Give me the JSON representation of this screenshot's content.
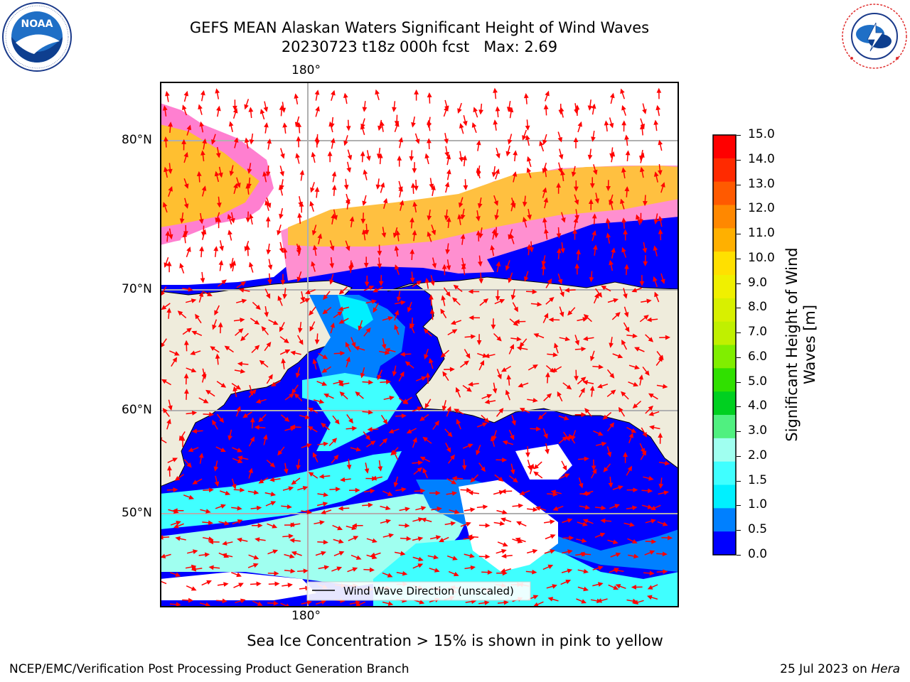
{
  "header": {
    "title_line1": "GEFS MEAN Alaskan Waters Significant Height of Wind Waves",
    "title_line2": "20230723 t18z 000h fcst   Max: 2.69"
  },
  "logos": {
    "noaa": {
      "icon": "noaa-logo",
      "wordmark": "NOAA",
      "ring_text": "NATIONAL OCEANIC AND ATMOSPHERIC ADMINISTRATION · U.S. DEPARTMENT OF COMMERCE"
    },
    "nws": {
      "icon": "nws-logo",
      "ring_text": "NATIONAL WEATHER SERVICE"
    }
  },
  "map": {
    "lon_labels": {
      "top": "180°",
      "bottom": "180°"
    },
    "lat_labels": [
      "80°N",
      "70°N",
      "60°N",
      "50°N"
    ],
    "legend": "Wind Wave Direction (unscaled)",
    "colors": {
      "land": "#efecdc",
      "coast": "#000000",
      "grid": "#b0b0b0",
      "arrow": "#ff0000"
    }
  },
  "colorbar": {
    "label": "Significant Height of Wind Waves [m]",
    "label_line1": "Significant Height of Wind",
    "label_line2": "Waves [m]",
    "ticks": [
      "15.0",
      "14.0",
      "13.0",
      "12.0",
      "11.0",
      "10.0",
      "9.0",
      "8.0",
      "7.0",
      "6.0",
      "5.0",
      "4.0",
      "3.0",
      "2.0",
      "1.5",
      "1.0",
      "0.5",
      "0.0"
    ],
    "colors_top_to_bottom": [
      "#ff0000",
      "#ff2a00",
      "#ff5a00",
      "#ff8800",
      "#ffb000",
      "#ffe000",
      "#f0f000",
      "#d8f000",
      "#c0f000",
      "#80ee00",
      "#30e000",
      "#00d020",
      "#50f080",
      "#a0fff0",
      "#40ffff",
      "#00f0ff",
      "#0080ff",
      "#0000ff"
    ]
  },
  "footer": {
    "note": "Sea Ice Concentration > 15% is shown in pink to yellow",
    "org": "NCEP/EMC/Verification Post Processing Product Generation Branch",
    "date": "25 Jul 2023 on ",
    "machine": "Hera"
  }
}
